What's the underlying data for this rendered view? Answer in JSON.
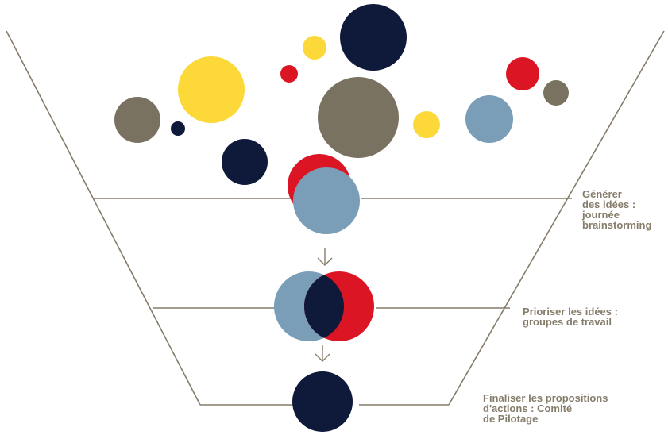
{
  "stages": [
    {
      "label": "Générer\ndes idées :\njournée\nbrainstorming"
    },
    {
      "label": "Prioriser les idées :\ngroupes de travail"
    },
    {
      "label": "Finaliser les propositions\nd'actions : Comité\nde Pilotage"
    }
  ],
  "colors": {
    "line": "#857c6a",
    "navy": "#0f1a3a",
    "yellow": "#fcd939",
    "taupe": "#7a7261",
    "red": "#db1523",
    "blue": "#7a9eb8",
    "label": "#857c6a"
  }
}
